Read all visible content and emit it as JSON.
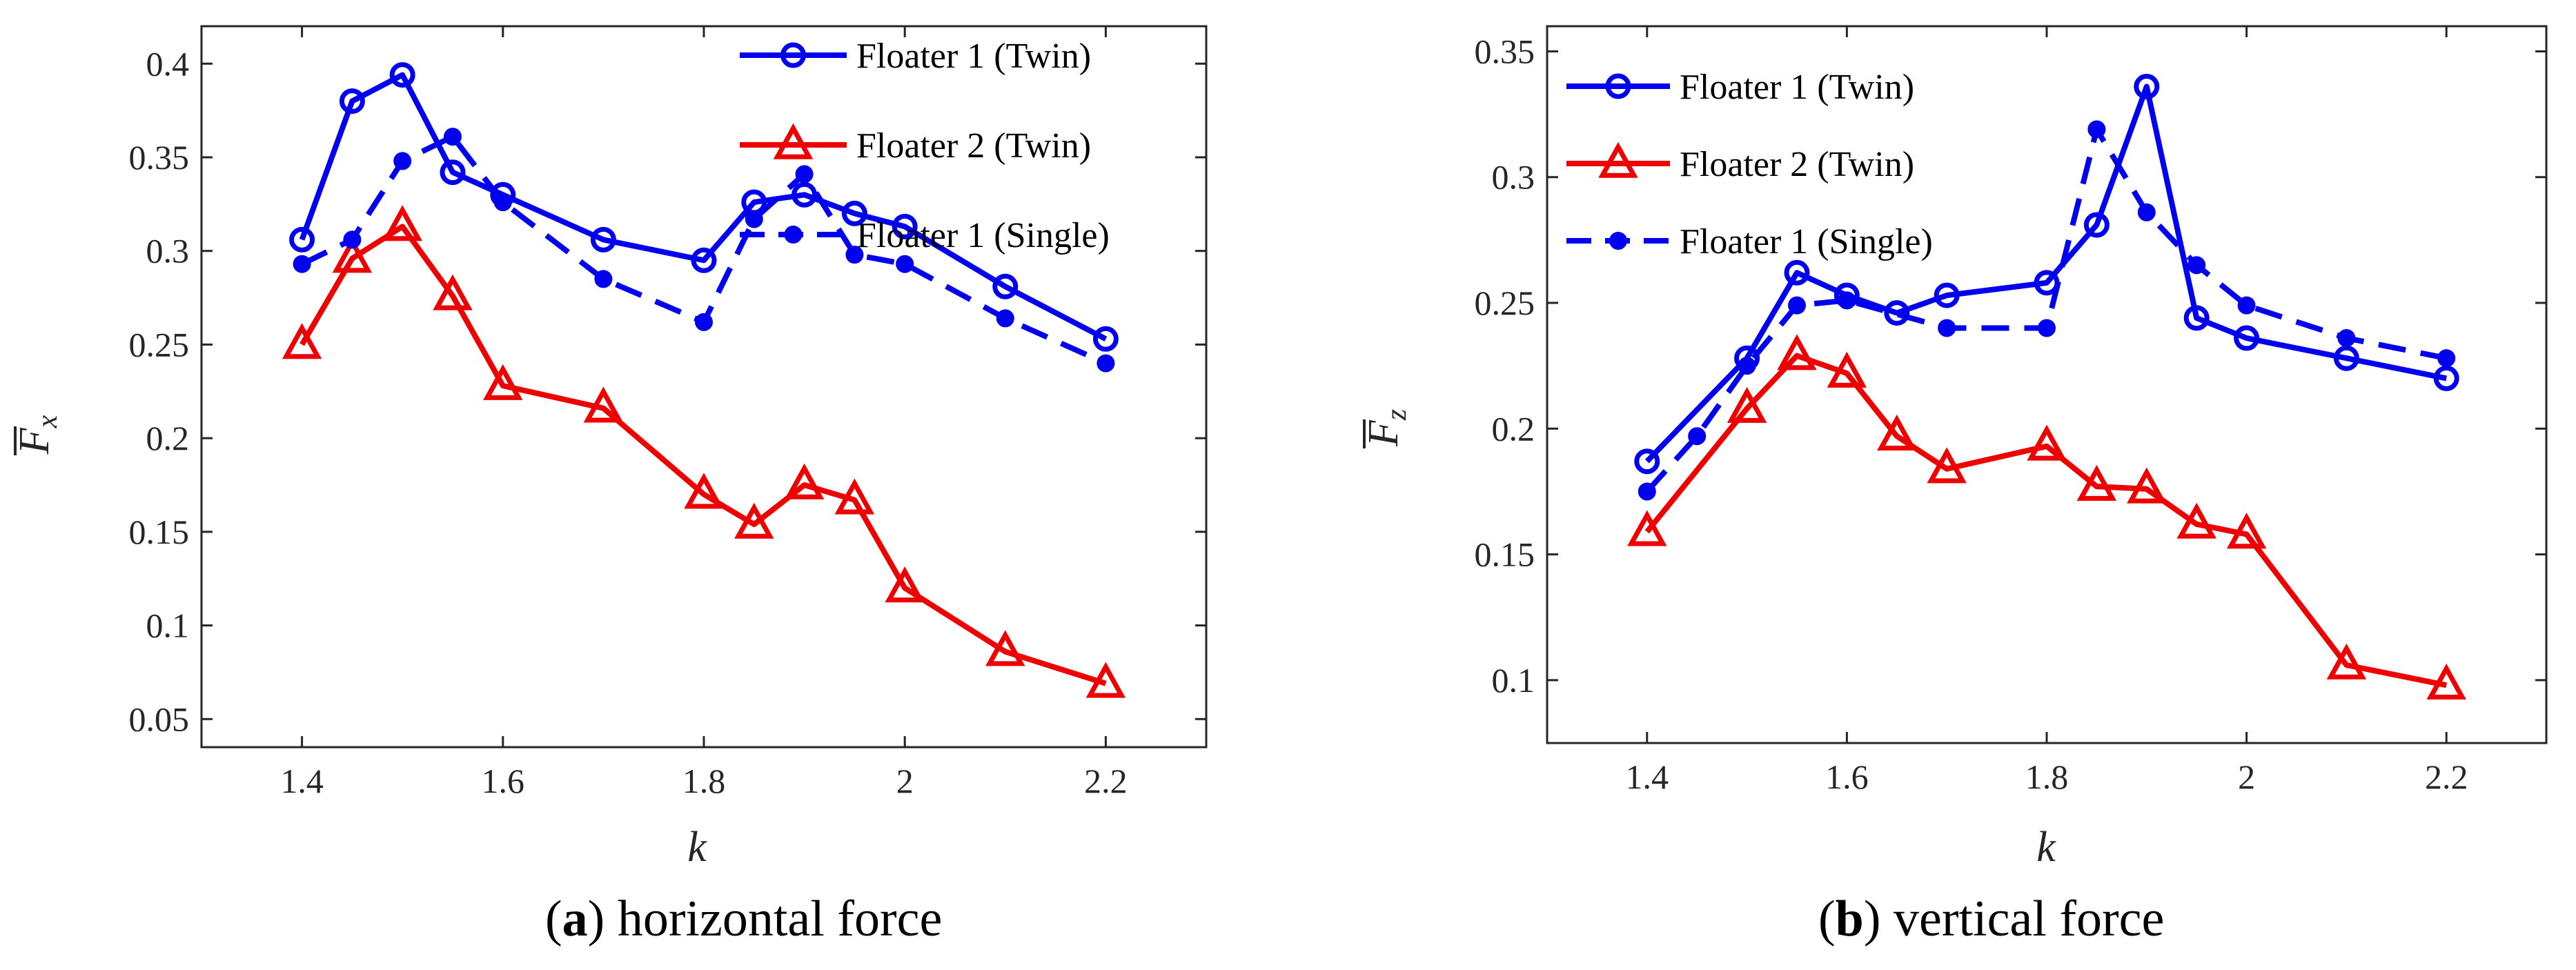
{
  "chart_data": [
    {
      "type": "line",
      "panel": "a",
      "caption_letter": "a",
      "caption_text": "horizontal force",
      "xlabel": "k",
      "ylabel_base": "F",
      "ylabel_sub": "x",
      "xlim": [
        1.3,
        2.3
      ],
      "ylim": [
        0.035,
        0.42
      ],
      "xticks": [
        1.4,
        1.6,
        1.8,
        2.0,
        2.2
      ],
      "xtick_labels": [
        "1.4",
        "1.6",
        "1.8",
        "2",
        "2.2"
      ],
      "yticks": [
        0.05,
        0.1,
        0.15,
        0.2,
        0.25,
        0.3,
        0.35,
        0.4
      ],
      "ytick_labels": [
        "0.05",
        "0.1",
        "0.15",
        "0.2",
        "0.25",
        "0.3",
        "0.35",
        "0.4"
      ],
      "legend_position": "top-right",
      "series": [
        {
          "name": "Floater 1 (Twin)",
          "color": "#0000ee",
          "style": "solid",
          "marker": "circle",
          "x": [
            1.4,
            1.45,
            1.5,
            1.55,
            1.6,
            1.7,
            1.8,
            1.85,
            1.9,
            1.95,
            2.0,
            2.1,
            2.2
          ],
          "y": [
            0.306,
            0.38,
            0.394,
            0.342,
            0.33,
            0.306,
            0.295,
            0.326,
            0.33,
            0.32,
            0.313,
            0.281,
            0.253
          ]
        },
        {
          "name": "Floater 2 (Twin)",
          "color": "#ee0000",
          "style": "solid",
          "marker": "triangle",
          "x": [
            1.4,
            1.45,
            1.5,
            1.55,
            1.6,
            1.7,
            1.8,
            1.85,
            1.9,
            1.95,
            2.0,
            2.1,
            2.2
          ],
          "y": [
            0.25,
            0.296,
            0.313,
            0.276,
            0.228,
            0.216,
            0.17,
            0.154,
            0.175,
            0.167,
            0.12,
            0.086,
            0.069
          ]
        },
        {
          "name": "Floater 1 (Single)",
          "color": "#0000ee",
          "style": "dashed",
          "marker": "dot",
          "x": [
            1.4,
            1.45,
            1.5,
            1.55,
            1.6,
            1.7,
            1.8,
            1.85,
            1.9,
            1.95,
            2.0,
            2.1,
            2.2
          ],
          "y": [
            0.293,
            0.306,
            0.348,
            0.361,
            0.326,
            0.285,
            0.262,
            0.317,
            0.341,
            0.298,
            0.293,
            0.264,
            0.24
          ]
        }
      ]
    },
    {
      "type": "line",
      "panel": "b",
      "caption_letter": "b",
      "caption_text": "vertical force",
      "xlabel": "k",
      "ylabel_base": "F",
      "ylabel_sub": "z",
      "xlim": [
        1.3,
        2.3
      ],
      "ylim": [
        0.075,
        0.36
      ],
      "xticks": [
        1.4,
        1.6,
        1.8,
        2.0,
        2.2
      ],
      "xtick_labels": [
        "1.4",
        "1.6",
        "1.8",
        "2",
        "2.2"
      ],
      "yticks": [
        0.1,
        0.15,
        0.2,
        0.25,
        0.3,
        0.35
      ],
      "ytick_labels": [
        "0.1",
        "0.15",
        "0.2",
        "0.25",
        "0.3",
        "0.35"
      ],
      "legend_position": "top-left",
      "series": [
        {
          "name": "Floater 1 (Twin)",
          "color": "#0000ee",
          "style": "solid",
          "marker": "circle",
          "x": [
            1.4,
            1.5,
            1.55,
            1.6,
            1.65,
            1.7,
            1.8,
            1.85,
            1.9,
            1.95,
            2.0,
            2.1,
            2.2
          ],
          "y": [
            0.187,
            0.228,
            0.262,
            0.253,
            0.246,
            0.253,
            0.258,
            0.281,
            0.336,
            0.244,
            0.236,
            0.228,
            0.22
          ]
        },
        {
          "name": "Floater 2 (Twin)",
          "color": "#ee0000",
          "style": "solid",
          "marker": "triangle",
          "x": [
            1.4,
            1.5,
            1.55,
            1.6,
            1.65,
            1.7,
            1.8,
            1.85,
            1.9,
            1.95,
            2.0,
            2.1,
            2.2
          ],
          "y": [
            0.159,
            0.208,
            0.229,
            0.222,
            0.197,
            0.184,
            0.193,
            0.177,
            0.176,
            0.162,
            0.158,
            0.106,
            0.098
          ]
        },
        {
          "name": "Floater 1 (Single)",
          "color": "#0000ee",
          "style": "dashed",
          "marker": "dot",
          "x": [
            1.4,
            1.45,
            1.5,
            1.55,
            1.6,
            1.7,
            1.8,
            1.85,
            1.9,
            1.95,
            2.0,
            2.1,
            2.2
          ],
          "y": [
            0.175,
            0.197,
            0.225,
            0.249,
            0.251,
            0.24,
            0.24,
            0.319,
            0.286,
            0.265,
            0.249,
            0.236,
            0.228
          ]
        }
      ]
    }
  ]
}
